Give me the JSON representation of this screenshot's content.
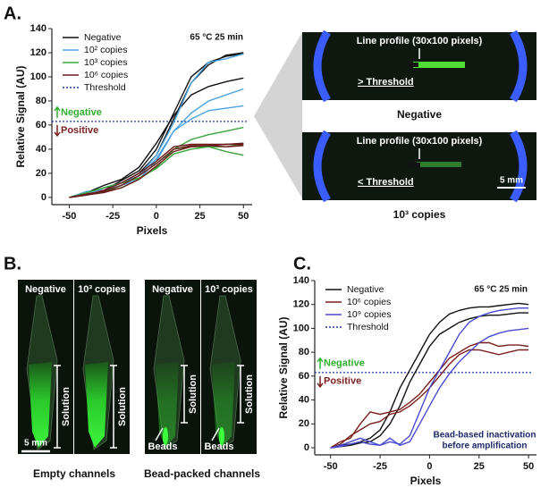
{
  "panel_labels": [
    "A.",
    "B.",
    "C."
  ],
  "chart_data": [
    {
      "type": "line",
      "x_label": "Pixels",
      "y_label": "Relative Signal (AU)",
      "condition": "65 °C 25 min",
      "x": [
        -50,
        -40,
        -30,
        -20,
        -10,
        0,
        10,
        20,
        30,
        40,
        50
      ],
      "xlim": [
        -60,
        55
      ],
      "xticks": [
        -50,
        -25,
        0,
        25,
        50
      ],
      "ylim": [
        -6,
        140
      ],
      "yticks": [
        0,
        20,
        40,
        60,
        80,
        100,
        120,
        140
      ],
      "legend": "upper left",
      "series": [
        {
          "name": "Negative",
          "color": "#111111",
          "replicates": [
            [
              0,
              3,
              8,
              12,
              20,
              35,
              65,
              95,
              110,
              118,
              120
            ],
            [
              0,
              2,
              6,
              14,
              22,
              40,
              70,
              100,
              112,
              117,
              119
            ],
            [
              0,
              4,
              10,
              15,
              25,
              45,
              68,
              85,
              92,
              96,
              99
            ]
          ]
        },
        {
          "name": "10² copies",
          "color": "#4aa3df",
          "replicates": [
            [
              0,
              5,
              6,
              10,
              18,
              35,
              62,
              95,
              112,
              115,
              119
            ],
            [
              0,
              3,
              8,
              12,
              18,
              32,
              55,
              70,
              80,
              85,
              90
            ],
            [
              0,
              2,
              5,
              10,
              15,
              30,
              55,
              65,
              72,
              74,
              76
            ]
          ]
        },
        {
          "name": "10³ copies",
          "color": "#3aa53a",
          "replicates": [
            [
              0,
              3,
              5,
              8,
              15,
              25,
              40,
              48,
              52,
              55,
              58
            ],
            [
              0,
              2,
              5,
              10,
              18,
              28,
              40,
              42,
              42,
              38,
              35
            ],
            [
              0,
              4,
              8,
              12,
              16,
              24,
              36,
              40,
              42,
              42,
              44
            ]
          ]
        },
        {
          "name": "10⁶ copies",
          "color": "#6b1a1a",
          "replicates": [
            [
              0,
              2,
              6,
              12,
              20,
              30,
              42,
              44,
              44,
              44,
              44
            ],
            [
              0,
              3,
              5,
              10,
              18,
              28,
              40,
              43,
              43,
              44,
              45
            ],
            [
              0,
              2,
              4,
              8,
              15,
              26,
              38,
              42,
              43,
              42,
              43
            ]
          ]
        }
      ],
      "threshold": {
        "name": "Threshold",
        "value": 63,
        "color": "#1f3a9a"
      },
      "above_label": "Negative",
      "below_label": "Positive"
    },
    {
      "type": "line",
      "x_label": "Pixels",
      "y_label": "Relative Signal (AU)",
      "condition": "65 °C 25 min",
      "x": [
        -50,
        -45,
        -40,
        -35,
        -30,
        -25,
        -20,
        -15,
        -10,
        -5,
        0,
        5,
        10,
        15,
        20,
        25,
        30,
        35,
        40,
        45,
        50
      ],
      "xlim": [
        -58,
        54
      ],
      "xticks": [
        -50,
        -25,
        0,
        25,
        50
      ],
      "ylim": [
        -6,
        140
      ],
      "yticks": [
        0,
        20,
        40,
        60,
        80,
        100,
        120,
        140
      ],
      "legend": "upper left",
      "series": [
        {
          "name": "Negative",
          "color": "#111111",
          "replicates": [
            [
              0,
              2,
              3,
              5,
              8,
              15,
              30,
              50,
              65,
              80,
              95,
              105,
              112,
              115,
              117,
              118,
              118,
              119,
              120,
              121,
              120
            ],
            [
              0,
              1,
              2,
              4,
              5,
              10,
              20,
              35,
              55,
              70,
              85,
              95,
              100,
              105,
              108,
              110,
              111,
              111,
              112,
              113,
              113
            ]
          ]
        },
        {
          "name": "10⁶ copies",
          "color": "#7a1f1f",
          "replicates": [
            [
              0,
              5,
              8,
              20,
              30,
              28,
              30,
              32,
              38,
              45,
              55,
              65,
              75,
              80,
              85,
              88,
              88,
              85,
              86,
              86,
              85
            ],
            [
              0,
              3,
              10,
              15,
              20,
              22,
              28,
              30,
              35,
              42,
              50,
              60,
              70,
              78,
              82,
              82,
              80,
              78,
              80,
              82,
              82
            ]
          ]
        },
        {
          "name": "10⁹ copies",
          "color": "#4a4ad0",
          "replicates": [
            [
              0,
              2,
              5,
              8,
              5,
              2,
              5,
              3,
              10,
              30,
              50,
              65,
              80,
              95,
              105,
              110,
              113,
              115,
              116,
              117,
              117
            ],
            [
              0,
              1,
              3,
              5,
              3,
              2,
              8,
              2,
              5,
              20,
              35,
              50,
              62,
              72,
              80,
              88,
              93,
              96,
              98,
              99,
              100
            ]
          ]
        }
      ],
      "threshold": {
        "name": "Threshold",
        "value": 63,
        "color": "#1f3a9a"
      },
      "above_label": "Negative",
      "below_label": "Positive",
      "note": [
        "Bead-based inactivation",
        "before amplification"
      ]
    }
  ],
  "images_a": [
    {
      "title": "Line profile (30x100 pixels)",
      "threshold": "> Threshold",
      "caption": "Negative"
    },
    {
      "title": "Line profile (30x100 pixels)",
      "threshold": "< Threshold",
      "caption": "10³ copies",
      "scale": "5 mm"
    }
  ],
  "images_b": {
    "panels": [
      {
        "label": "Negative",
        "solution": "Solution"
      },
      {
        "label": "10³ copies",
        "solution": "Solution"
      },
      {
        "label": "Negative",
        "solution": "Solution",
        "beads": "Beads"
      },
      {
        "label": "10³ copies",
        "solution": "Solution",
        "beads": "Beads"
      }
    ],
    "scale": "5 mm",
    "captions": [
      "Empty channels",
      "Bead-packed channels"
    ]
  }
}
